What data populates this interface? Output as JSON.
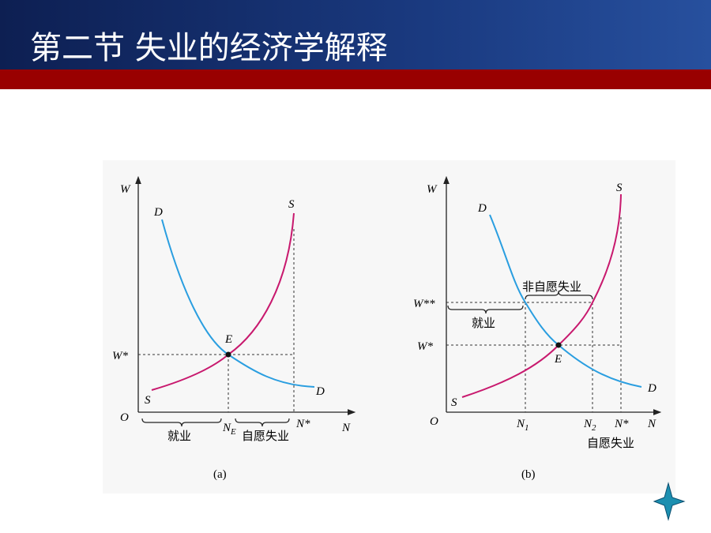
{
  "header": {
    "title": "第二节  失业的经济学解释"
  },
  "panels": [
    {
      "caption": "(a)",
      "labels": {
        "w_axis": "W",
        "d_top": "D",
        "s_top": "S",
        "e": "E",
        "w_star": "W*",
        "s_bottom": "S",
        "d_bottom": "D",
        "origin": "O",
        "ne_base": "N",
        "ne_sub": "E",
        "n_star": "N*",
        "n_axis": "N",
        "employed": "就业",
        "voluntary": "自愿失业"
      }
    },
    {
      "caption": "(b)",
      "labels": {
        "w_axis": "W",
        "s_top": "S",
        "d_top": "D",
        "involuntary": "非自愿失业",
        "w_2star": "W**",
        "employed": "就业",
        "w_star": "W*",
        "e": "E",
        "s_bottom": "S",
        "d_bottom": "D",
        "origin": "O",
        "n1_base": "N",
        "n1_sub": "1",
        "n2_base": "N",
        "n2_sub": "2",
        "n_star": "N*",
        "n_axis": "N",
        "voluntary": "自愿失业"
      }
    }
  ]
}
